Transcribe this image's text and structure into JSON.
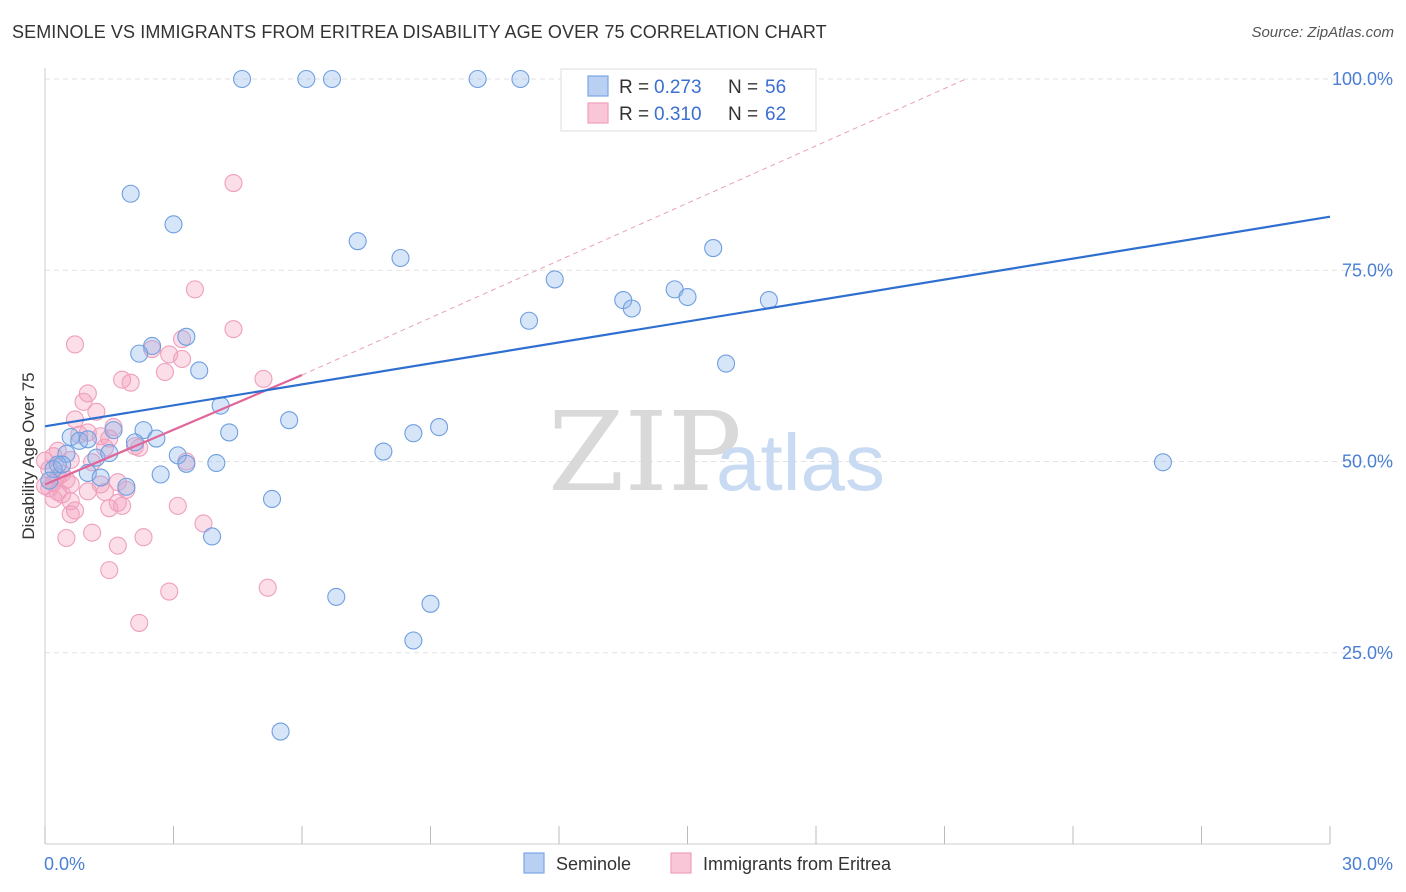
{
  "title": "SEMINOLE VS IMMIGRANTS FROM ERITREA DISABILITY AGE OVER 75 CORRELATION CHART",
  "source": "Source: ZipAtlas.com",
  "watermark": {
    "zip": "ZIP",
    "atlas": "atlas"
  },
  "legend": {
    "r_label": "R =",
    "n_label": "N =",
    "entries": [
      {
        "name": "Seminole",
        "r": "0.273",
        "n": "56"
      },
      {
        "name": "Immigrants from Eritrea",
        "r": "0.310",
        "n": "62"
      }
    ]
  },
  "chart_data": {
    "type": "scatter",
    "title": "SEMINOLE VS IMMIGRANTS FROM ERITREA DISABILITY AGE OVER 75 CORRELATION CHART",
    "xlabel": "",
    "ylabel": "Disability Age Over 75",
    "xlim": [
      0,
      30
    ],
    "ylim": [
      0,
      103
    ],
    "x_tick_labels": [
      "0.0%",
      "30.0%"
    ],
    "y_ticks": [
      25,
      50,
      75,
      100
    ],
    "y_tick_labels": [
      "25.0%",
      "50.0%",
      "75.0%",
      "100.0%"
    ],
    "grid": true,
    "legend_position": "top-center",
    "colors": {
      "Seminole": "#7aa7e6",
      "Immigrants from Eritrea": "#f0a0bc",
      "seminole_line": "#2f6fd0",
      "eritrea_line": "#e0669a"
    },
    "series": [
      {
        "name": "Seminole",
        "color": "#7aa7e6",
        "trend": {
          "x": [
            0,
            30
          ],
          "y": [
            54.6,
            82.0
          ]
        },
        "points": [
          [
            4.6,
            100
          ],
          [
            6.1,
            100
          ],
          [
            6.7,
            100
          ],
          [
            10.1,
            100
          ],
          [
            11.1,
            100
          ],
          [
            2.0,
            85.0
          ],
          [
            3.0,
            81.0
          ],
          [
            7.3,
            78.8
          ],
          [
            8.3,
            76.6
          ],
          [
            15.6,
            77.9
          ],
          [
            11.9,
            73.8
          ],
          [
            14.7,
            72.5
          ],
          [
            13.5,
            71.1
          ],
          [
            15.0,
            71.5
          ],
          [
            13.7,
            70.0
          ],
          [
            16.9,
            71.1
          ],
          [
            11.3,
            68.4
          ],
          [
            3.3,
            66.3
          ],
          [
            15.9,
            62.8
          ],
          [
            2.5,
            65.1
          ],
          [
            2.2,
            64.1
          ],
          [
            3.6,
            61.9
          ],
          [
            4.1,
            57.3
          ],
          [
            5.7,
            55.4
          ],
          [
            2.3,
            54.1
          ],
          [
            1.6,
            54.1
          ],
          [
            4.3,
            53.8
          ],
          [
            9.2,
            54.5
          ],
          [
            8.6,
            53.7
          ],
          [
            0.6,
            53.2
          ],
          [
            0.8,
            52.7
          ],
          [
            1.0,
            52.9
          ],
          [
            2.1,
            52.5
          ],
          [
            2.6,
            53.0
          ],
          [
            0.5,
            51.0
          ],
          [
            1.2,
            50.5
          ],
          [
            1.5,
            51.1
          ],
          [
            7.9,
            51.3
          ],
          [
            3.1,
            50.8
          ],
          [
            0.3,
            49.6
          ],
          [
            0.2,
            49.0
          ],
          [
            0.4,
            49.6
          ],
          [
            3.3,
            49.7
          ],
          [
            4.0,
            49.8
          ],
          [
            1.0,
            48.5
          ],
          [
            2.7,
            48.3
          ],
          [
            0.1,
            47.5
          ],
          [
            1.9,
            46.7
          ],
          [
            5.3,
            45.1
          ],
          [
            3.9,
            40.2
          ],
          [
            6.8,
            32.3
          ],
          [
            9.0,
            31.4
          ],
          [
            8.6,
            26.6
          ],
          [
            5.5,
            14.7
          ],
          [
            26.1,
            49.9
          ],
          [
            1.3,
            47.9
          ]
        ]
      },
      {
        "name": "Immigrants from Eritrea",
        "color": "#f0a0bc",
        "trend": {
          "x": [
            0,
            6
          ],
          "y": [
            47.0,
            61.3
          ]
        },
        "trend_extension": {
          "x": [
            6,
            21.5
          ],
          "y": [
            61.3,
            100
          ]
        },
        "points": [
          [
            4.4,
            86.4
          ],
          [
            3.5,
            72.5
          ],
          [
            4.4,
            67.3
          ],
          [
            0.7,
            65.3
          ],
          [
            3.2,
            66.0
          ],
          [
            2.5,
            64.7
          ],
          [
            2.9,
            64.0
          ],
          [
            3.2,
            63.4
          ],
          [
            2.8,
            61.7
          ],
          [
            5.1,
            60.8
          ],
          [
            1.8,
            60.7
          ],
          [
            2.0,
            60.3
          ],
          [
            1.0,
            58.9
          ],
          [
            0.9,
            57.8
          ],
          [
            1.2,
            56.5
          ],
          [
            0.7,
            55.5
          ],
          [
            1.6,
            54.5
          ],
          [
            1.0,
            53.8
          ],
          [
            1.3,
            53.3
          ],
          [
            1.5,
            53.0
          ],
          [
            0.8,
            53.5
          ],
          [
            2.1,
            52.0
          ],
          [
            2.2,
            51.8
          ],
          [
            1.4,
            51.8
          ],
          [
            0.3,
            51.4
          ],
          [
            0.2,
            50.7
          ],
          [
            0.6,
            50.2
          ],
          [
            1.1,
            49.9
          ],
          [
            3.3,
            50.0
          ],
          [
            0.1,
            49.0
          ],
          [
            0.4,
            48.4
          ],
          [
            0.3,
            48.0
          ],
          [
            0.5,
            47.6
          ],
          [
            0.2,
            47.2
          ],
          [
            0.6,
            47.0
          ],
          [
            1.3,
            47.0
          ],
          [
            1.7,
            47.3
          ],
          [
            0.1,
            46.5
          ],
          [
            0.3,
            46.0
          ],
          [
            0.4,
            45.7
          ],
          [
            1.0,
            46.1
          ],
          [
            1.4,
            46.0
          ],
          [
            1.9,
            46.3
          ],
          [
            0.2,
            45.1
          ],
          [
            0.6,
            44.8
          ],
          [
            1.7,
            44.6
          ],
          [
            1.8,
            44.2
          ],
          [
            0.7,
            43.6
          ],
          [
            1.5,
            43.9
          ],
          [
            3.1,
            44.2
          ],
          [
            0.6,
            43.1
          ],
          [
            3.7,
            41.9
          ],
          [
            1.1,
            40.7
          ],
          [
            0.5,
            40.0
          ],
          [
            2.3,
            40.1
          ],
          [
            1.7,
            39.0
          ],
          [
            1.5,
            35.8
          ],
          [
            2.9,
            33.0
          ],
          [
            5.2,
            33.5
          ],
          [
            2.2,
            28.9
          ],
          [
            0.0,
            50.1
          ],
          [
            0.0,
            46.8
          ]
        ]
      }
    ]
  }
}
